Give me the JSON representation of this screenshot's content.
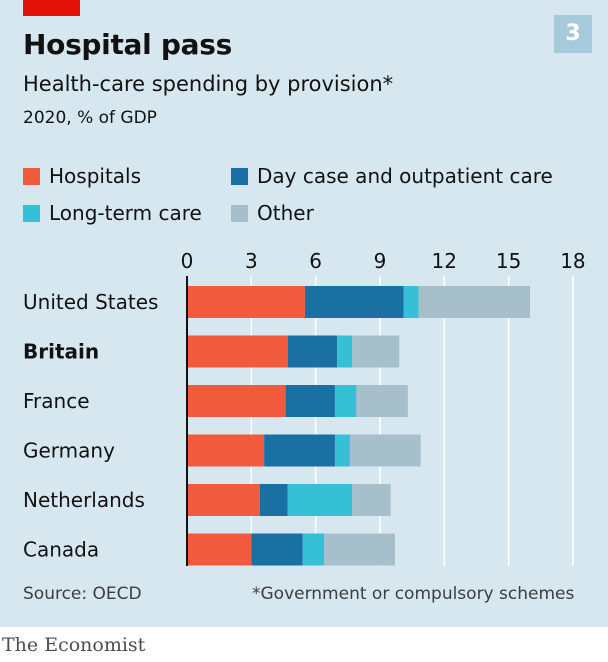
{
  "header": {
    "title": "Hospital pass",
    "subtitle": "Health-care spending by provision*",
    "unit": "2020, % of GDP",
    "chart_number": "3"
  },
  "footer": {
    "source": "Source: OECD",
    "footnote": "*Government or compulsory schemes",
    "brand": "The Economist"
  },
  "colors": {
    "background": "#d6e7f0",
    "accent_red": "#e3120b",
    "Hospitals": "#f15a3d",
    "Day case and outpatient care": "#1a6fa3",
    "Long-term care": "#36c0d6",
    "Other": "#a7bfcb",
    "gridline": "#ffffff",
    "axis": "#121212"
  },
  "chart_data": {
    "type": "bar",
    "orientation": "horizontal",
    "stacked": true,
    "title": "Hospital pass",
    "subtitle": "Health-care spending by provision*",
    "unit": "2020, % of GDP",
    "categories": [
      "United States",
      "Britain",
      "France",
      "Germany",
      "Netherlands",
      "Canada"
    ],
    "highlight_category": "Britain",
    "series": [
      {
        "name": "Hospitals",
        "values": [
          5.5,
          4.7,
          4.6,
          3.6,
          3.4,
          3.0
        ]
      },
      {
        "name": "Day case and outpatient care",
        "values": [
          4.6,
          2.3,
          2.3,
          3.3,
          1.3,
          2.4
        ]
      },
      {
        "name": "Long-term care",
        "values": [
          0.7,
          0.7,
          1.0,
          0.7,
          3.0,
          1.0
        ]
      },
      {
        "name": "Other",
        "values": [
          5.2,
          2.2,
          2.4,
          3.3,
          1.8,
          3.3
        ]
      }
    ],
    "xlim": [
      0,
      18
    ],
    "xticks": [
      0,
      3,
      6,
      9,
      12,
      15,
      18
    ],
    "grid": true,
    "legend_position": "top-left"
  }
}
